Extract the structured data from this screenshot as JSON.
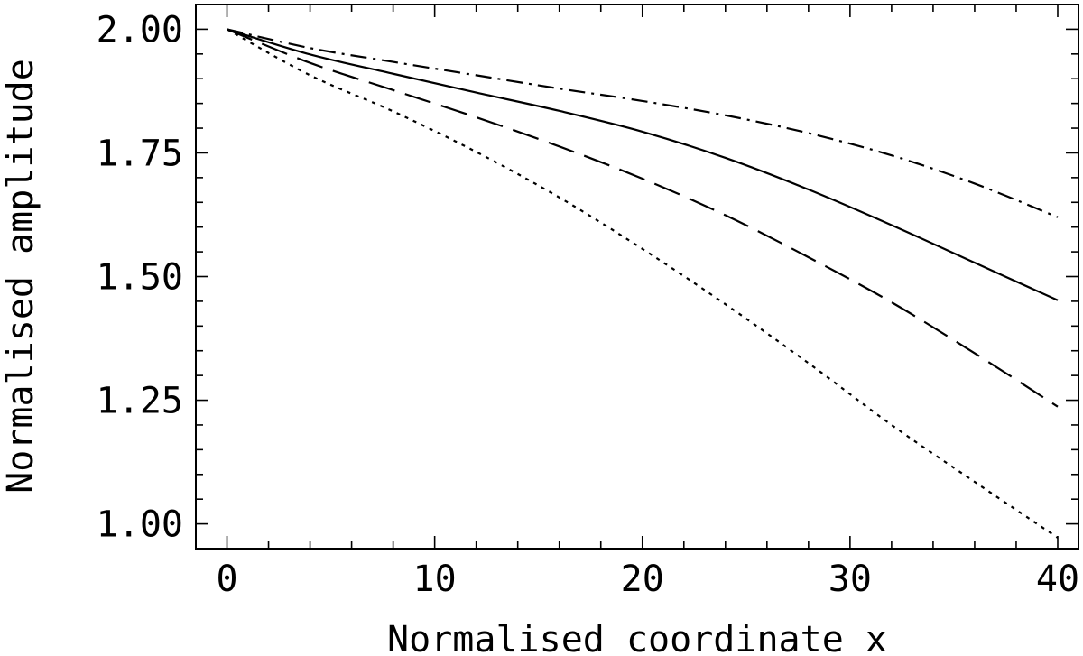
{
  "chart_data": {
    "type": "line",
    "title": "",
    "xlabel": "Normalised coordinate x",
    "ylabel": "Normalised amplitude",
    "xlim": [
      -1.5,
      41
    ],
    "ylim": [
      0.95,
      2.05
    ],
    "x_ticks": [
      0,
      10,
      20,
      30,
      40
    ],
    "x_tick_labels": [
      "0",
      "10",
      "20",
      "30",
      "40"
    ],
    "y_ticks": [
      1.0,
      1.25,
      1.5,
      1.75,
      2.0
    ],
    "y_tick_labels": [
      "1.00",
      "1.25",
      "1.50",
      "1.75",
      "2.00"
    ],
    "grid": false,
    "legend": "none",
    "x": [
      0,
      4,
      8,
      12,
      16,
      20,
      24,
      28,
      32,
      36,
      40
    ],
    "series": [
      {
        "style": "dash-dot",
        "color": "#000000",
        "values": [
          2.0,
          1.962,
          1.934,
          1.907,
          1.88,
          1.855,
          1.826,
          1.79,
          1.745,
          1.688,
          1.62
        ]
      },
      {
        "style": "solid",
        "color": "#000000",
        "values": [
          2.0,
          1.949,
          1.91,
          1.872,
          1.835,
          1.793,
          1.74,
          1.676,
          1.604,
          1.528,
          1.452
        ]
      },
      {
        "style": "long-dash",
        "color": "#000000",
        "values": [
          2.0,
          1.932,
          1.877,
          1.822,
          1.763,
          1.698,
          1.624,
          1.539,
          1.448,
          1.345,
          1.237
        ]
      },
      {
        "style": "dotted",
        "color": "#000000",
        "values": [
          2.0,
          1.907,
          1.834,
          1.752,
          1.66,
          1.556,
          1.444,
          1.325,
          1.2,
          1.085,
          0.972
        ]
      }
    ]
  }
}
